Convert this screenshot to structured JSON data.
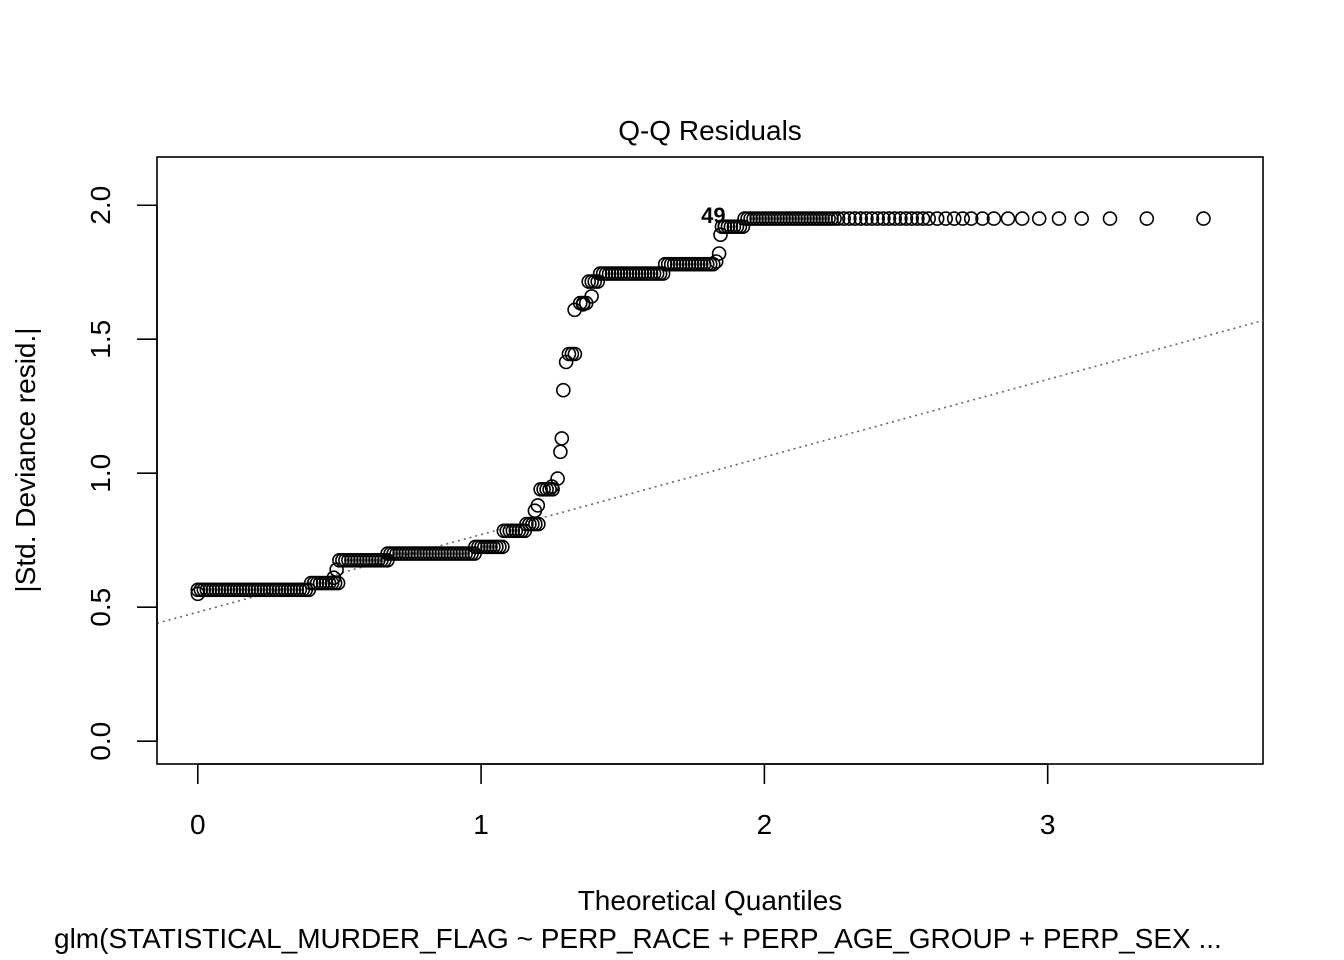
{
  "chart_data": {
    "type": "scatter",
    "title": "Q-Q Residuals",
    "xlabel": "Theoretical Quantiles",
    "ylabel": "|Std. Deviance resid.|",
    "subtitle": "glm(STATISTICAL_MURDER_FLAG ~ PERP_RACE + PERP_AGE_GROUP + PERP_SEX ...",
    "xlim": [
      -0.144,
      3.76
    ],
    "ylim": [
      -0.085,
      2.18
    ],
    "x_ticks": [
      0,
      1,
      2,
      3
    ],
    "x_tick_labels": [
      "0",
      "1",
      "2",
      "3"
    ],
    "y_ticks": [
      0.0,
      0.5,
      1.0,
      1.5,
      2.0
    ],
    "y_tick_labels": [
      "0.0",
      "0.5",
      "1.0",
      "1.5",
      "2.0"
    ],
    "grid": false,
    "point_label": "49",
    "point_label_position": [
      1.82,
      1.96
    ],
    "reference_line": {
      "type": "dotted",
      "points": [
        [
          -0.144,
          0.44
        ],
        [
          3.76,
          1.57
        ]
      ]
    },
    "segments": [
      {
        "x_start": 0.0,
        "x_end": 0.4,
        "y": 0.565
      },
      {
        "x_start": 0.4,
        "x_end": 0.5,
        "y": 0.59
      },
      {
        "x_start": 0.5,
        "x_end": 0.67,
        "y": 0.675
      },
      {
        "x_start": 0.67,
        "x_end": 0.98,
        "y": 0.7
      },
      {
        "x_start": 0.98,
        "x_end": 1.08,
        "y": 0.725
      },
      {
        "x_start": 1.08,
        "x_end": 1.16,
        "y": 0.785
      },
      {
        "x_start": 1.16,
        "x_end": 1.21,
        "y": 0.81
      },
      {
        "x_start": 1.21,
        "x_end": 1.26,
        "y": 0.94
      },
      {
        "x_start": 1.31,
        "x_end": 1.34,
        "y": 1.445
      },
      {
        "x_start": 1.35,
        "x_end": 1.38,
        "y": 1.635
      },
      {
        "x_start": 1.38,
        "x_end": 1.42,
        "y": 1.715
      },
      {
        "x_start": 1.42,
        "x_end": 1.65,
        "y": 1.745
      },
      {
        "x_start": 1.65,
        "x_end": 1.82,
        "y": 1.78
      },
      {
        "x_start": 1.85,
        "x_end": 1.93,
        "y": 1.92
      },
      {
        "x_start": 1.93,
        "x_end": 2.25,
        "y": 1.95
      }
    ],
    "points": [
      [
        0.0,
        0.55
      ],
      [
        0.48,
        0.61
      ],
      [
        0.49,
        0.64
      ],
      [
        1.19,
        0.86
      ],
      [
        1.2,
        0.88
      ],
      [
        1.25,
        0.95
      ],
      [
        1.27,
        0.98
      ],
      [
        1.28,
        1.08
      ],
      [
        1.285,
        1.13
      ],
      [
        1.29,
        1.31
      ],
      [
        1.3,
        1.415
      ],
      [
        1.33,
        1.61
      ],
      [
        1.36,
        1.63
      ],
      [
        1.39,
        1.66
      ],
      [
        1.84,
        1.82
      ],
      [
        1.83,
        1.79
      ],
      [
        1.845,
        1.89
      ],
      [
        1.86,
        1.92
      ],
      [
        2.26,
        1.95
      ],
      [
        2.28,
        1.95
      ],
      [
        2.3,
        1.95
      ],
      [
        2.32,
        1.95
      ],
      [
        2.34,
        1.95
      ],
      [
        2.36,
        1.95
      ],
      [
        2.38,
        1.95
      ],
      [
        2.4,
        1.95
      ],
      [
        2.42,
        1.95
      ],
      [
        2.44,
        1.95
      ],
      [
        2.46,
        1.95
      ],
      [
        2.48,
        1.95
      ],
      [
        2.5,
        1.95
      ],
      [
        2.52,
        1.95
      ],
      [
        2.54,
        1.95
      ],
      [
        2.56,
        1.95
      ],
      [
        2.58,
        1.95
      ],
      [
        2.61,
        1.95
      ],
      [
        2.64,
        1.95
      ],
      [
        2.67,
        1.95
      ],
      [
        2.7,
        1.95
      ],
      [
        2.73,
        1.95
      ],
      [
        2.77,
        1.95
      ],
      [
        2.81,
        1.95
      ],
      [
        2.86,
        1.95
      ],
      [
        2.91,
        1.95
      ],
      [
        2.97,
        1.95
      ],
      [
        3.04,
        1.95
      ],
      [
        3.12,
        1.95
      ],
      [
        3.22,
        1.95
      ],
      [
        3.35,
        1.95
      ],
      [
        3.55,
        1.95
      ]
    ]
  }
}
